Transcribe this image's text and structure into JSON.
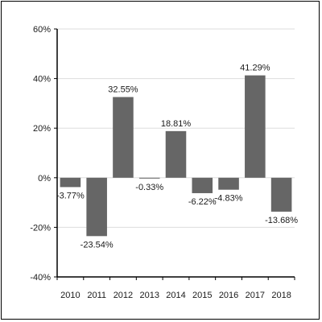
{
  "chart_data": {
    "type": "bar",
    "categories": [
      "2010",
      "2011",
      "2012",
      "2013",
      "2014",
      "2015",
      "2016",
      "2017",
      "2018"
    ],
    "values": [
      -3.77,
      -23.54,
      32.55,
      -0.33,
      18.81,
      -6.22,
      -4.83,
      41.29,
      -13.68
    ],
    "value_labels": [
      "-3.77%",
      "-23.54%",
      "32.55%",
      "-0.33%",
      "18.81%",
      "-6.22%",
      "-4.83%",
      "41.29%",
      "-13.68%"
    ],
    "ylim": [
      -40,
      60
    ],
    "yticks": [
      60,
      40,
      20,
      0,
      -20,
      -40
    ],
    "ytick_labels": [
      "60%",
      "40%",
      "20%",
      "0%",
      "-20%",
      "-40%"
    ],
    "title": "",
    "xlabel": "",
    "ylabel": "",
    "grid": true,
    "bar_color": "#666666",
    "grid_color": "#dddddd",
    "axis_color": "#000000"
  }
}
